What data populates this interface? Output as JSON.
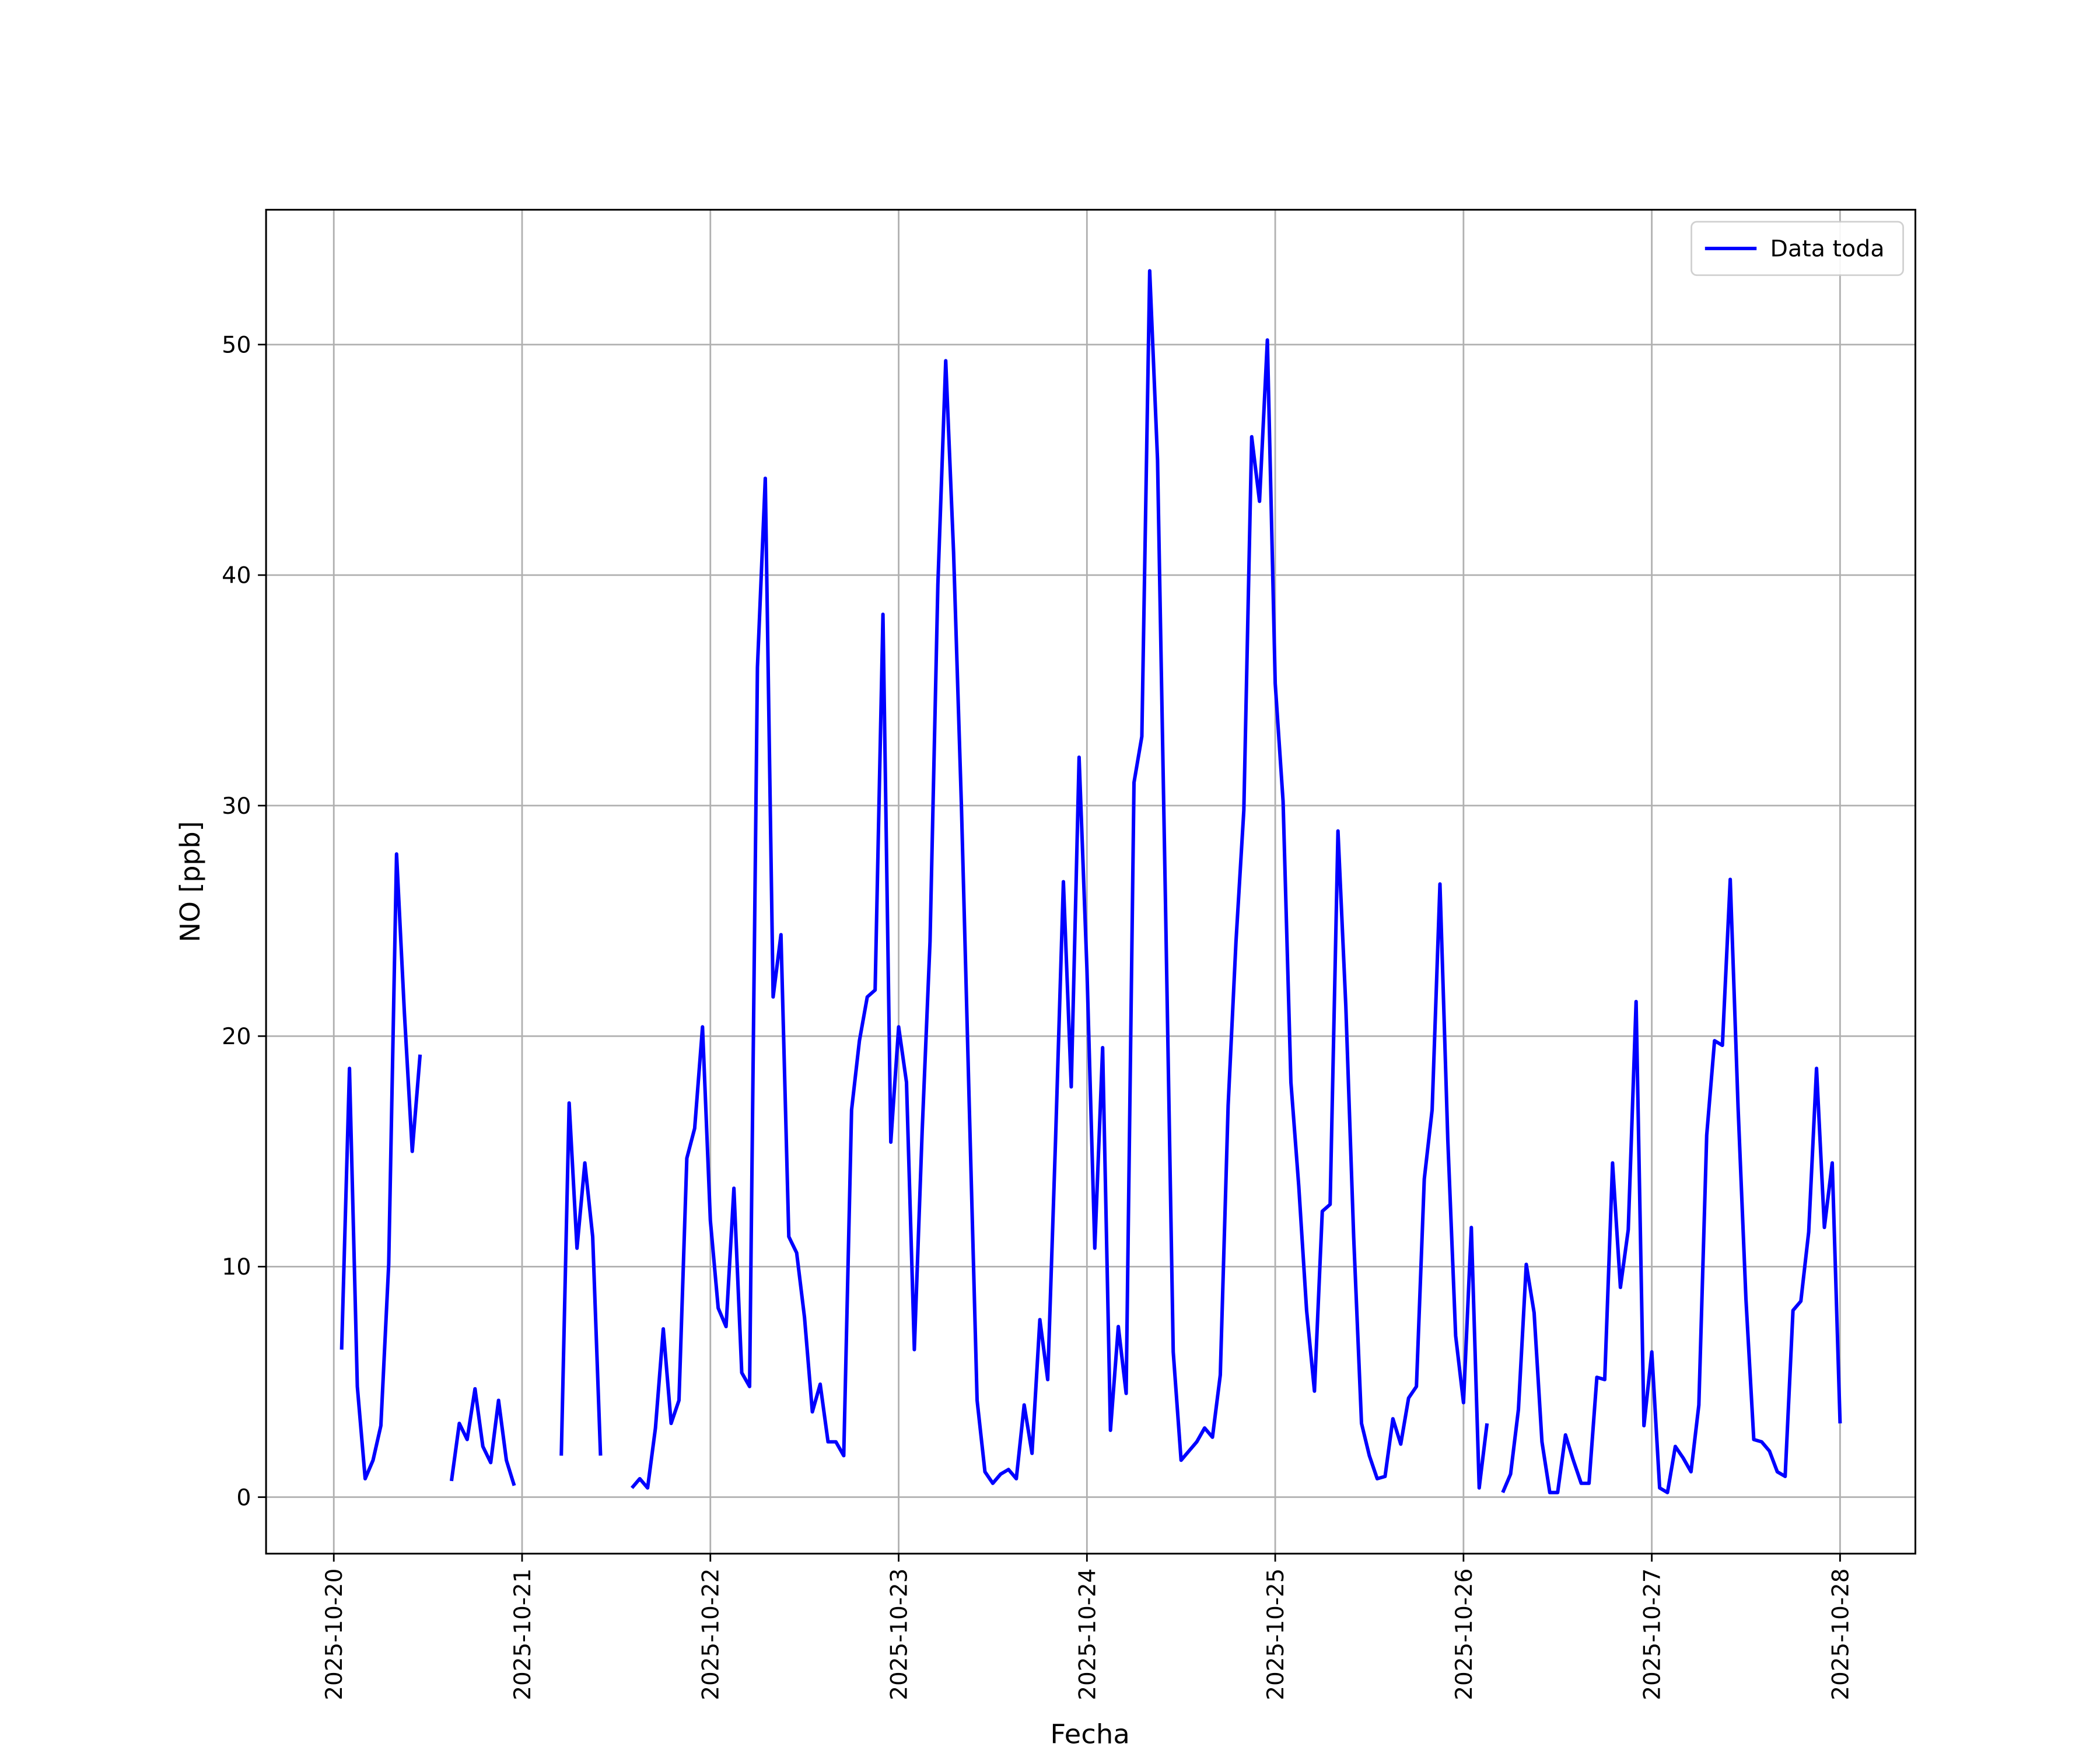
{
  "chart_data": {
    "type": "line",
    "xlabel": "Fecha",
    "ylabel": "NO [ppb]",
    "x": [
      "2025-10-20 01:00",
      "2025-10-20 02:00",
      "2025-10-20 03:00",
      "2025-10-20 04:00",
      "2025-10-20 05:00",
      "2025-10-20 06:00",
      "2025-10-20 07:00",
      "2025-10-20 08:00",
      "2025-10-20 09:00",
      "2025-10-20 10:00",
      "2025-10-20 11:00",
      "2025-10-20 12:00",
      "2025-10-20 13:00",
      "2025-10-20 14:00",
      "2025-10-20 15:00",
      "2025-10-20 16:00",
      "2025-10-20 17:00",
      "2025-10-20 18:00",
      "2025-10-20 19:00",
      "2025-10-20 20:00",
      "2025-10-20 21:00",
      "2025-10-20 22:00",
      "2025-10-20 23:00",
      "2025-10-21 00:00",
      "2025-10-21 01:00",
      "2025-10-21 02:00",
      "2025-10-21 03:00",
      "2025-10-21 04:00",
      "2025-10-21 05:00",
      "2025-10-21 06:00",
      "2025-10-21 07:00",
      "2025-10-21 08:00",
      "2025-10-21 09:00",
      "2025-10-21 10:00",
      "2025-10-21 11:00",
      "2025-10-21 12:00",
      "2025-10-21 13:00",
      "2025-10-21 14:00",
      "2025-10-21 15:00",
      "2025-10-21 16:00",
      "2025-10-21 17:00",
      "2025-10-21 18:00",
      "2025-10-21 19:00",
      "2025-10-21 20:00",
      "2025-10-21 21:00",
      "2025-10-21 22:00",
      "2025-10-21 23:00",
      "2025-10-22 00:00",
      "2025-10-22 01:00",
      "2025-10-22 02:00",
      "2025-10-22 03:00",
      "2025-10-22 04:00",
      "2025-10-22 05:00",
      "2025-10-22 06:00",
      "2025-10-22 07:00",
      "2025-10-22 08:00",
      "2025-10-22 09:00",
      "2025-10-22 10:00",
      "2025-10-22 11:00",
      "2025-10-22 12:00",
      "2025-10-22 13:00",
      "2025-10-22 14:00",
      "2025-10-22 15:00",
      "2025-10-22 16:00",
      "2025-10-22 17:00",
      "2025-10-22 18:00",
      "2025-10-22 19:00",
      "2025-10-22 20:00",
      "2025-10-22 21:00",
      "2025-10-22 22:00",
      "2025-10-22 23:00",
      "2025-10-23 00:00",
      "2025-10-23 01:00",
      "2025-10-23 02:00",
      "2025-10-23 03:00",
      "2025-10-23 04:00",
      "2025-10-23 05:00",
      "2025-10-23 06:00",
      "2025-10-23 07:00",
      "2025-10-23 08:00",
      "2025-10-23 09:00",
      "2025-10-23 10:00",
      "2025-10-23 11:00",
      "2025-10-23 12:00",
      "2025-10-23 13:00",
      "2025-10-23 14:00",
      "2025-10-23 15:00",
      "2025-10-23 16:00",
      "2025-10-23 17:00",
      "2025-10-23 18:00",
      "2025-10-23 19:00",
      "2025-10-23 20:00",
      "2025-10-23 21:00",
      "2025-10-23 22:00",
      "2025-10-23 23:00",
      "2025-10-24 00:00",
      "2025-10-24 01:00",
      "2025-10-24 02:00",
      "2025-10-24 03:00",
      "2025-10-24 04:00",
      "2025-10-24 05:00",
      "2025-10-24 06:00",
      "2025-10-24 07:00",
      "2025-10-24 08:00",
      "2025-10-24 09:00",
      "2025-10-24 10:00",
      "2025-10-24 11:00",
      "2025-10-24 12:00",
      "2025-10-24 13:00",
      "2025-10-24 14:00",
      "2025-10-24 15:00",
      "2025-10-24 16:00",
      "2025-10-24 17:00",
      "2025-10-24 18:00",
      "2025-10-24 19:00",
      "2025-10-24 20:00",
      "2025-10-24 21:00",
      "2025-10-24 22:00",
      "2025-10-24 23:00",
      "2025-10-25 00:00",
      "2025-10-25 01:00",
      "2025-10-25 02:00",
      "2025-10-25 03:00",
      "2025-10-25 04:00",
      "2025-10-25 05:00",
      "2025-10-25 06:00",
      "2025-10-25 07:00",
      "2025-10-25 08:00",
      "2025-10-25 09:00",
      "2025-10-25 10:00",
      "2025-10-25 11:00",
      "2025-10-25 12:00",
      "2025-10-25 13:00",
      "2025-10-25 14:00",
      "2025-10-25 15:00",
      "2025-10-25 16:00",
      "2025-10-25 17:00",
      "2025-10-25 18:00",
      "2025-10-25 19:00",
      "2025-10-25 20:00",
      "2025-10-25 21:00",
      "2025-10-25 22:00",
      "2025-10-25 23:00",
      "2025-10-26 00:00",
      "2025-10-26 01:00",
      "2025-10-26 02:00",
      "2025-10-26 03:00",
      "2025-10-26 04:00",
      "2025-10-26 05:00",
      "2025-10-26 06:00",
      "2025-10-26 07:00",
      "2025-10-26 08:00",
      "2025-10-26 09:00",
      "2025-10-26 10:00",
      "2025-10-26 11:00",
      "2025-10-26 12:00",
      "2025-10-26 13:00",
      "2025-10-26 14:00",
      "2025-10-26 15:00",
      "2025-10-26 16:00",
      "2025-10-26 17:00",
      "2025-10-26 18:00",
      "2025-10-26 19:00",
      "2025-10-26 20:00",
      "2025-10-26 21:00",
      "2025-10-26 22:00",
      "2025-10-26 23:00",
      "2025-10-27 00:00",
      "2025-10-27 01:00",
      "2025-10-27 02:00",
      "2025-10-27 03:00",
      "2025-10-27 04:00",
      "2025-10-27 05:00",
      "2025-10-27 06:00",
      "2025-10-27 07:00",
      "2025-10-27 08:00",
      "2025-10-27 09:00",
      "2025-10-27 10:00",
      "2025-10-27 11:00",
      "2025-10-27 12:00",
      "2025-10-27 13:00",
      "2025-10-27 14:00",
      "2025-10-27 15:00",
      "2025-10-27 16:00",
      "2025-10-27 17:00",
      "2025-10-27 18:00",
      "2025-10-27 19:00",
      "2025-10-27 20:00",
      "2025-10-27 21:00",
      "2025-10-27 22:00",
      "2025-10-27 23:00",
      "2025-10-28 00:00"
    ],
    "series": [
      {
        "name": "Data toda",
        "color": "#0000ff",
        "values": [
          6.4,
          18.6,
          4.8,
          0.8,
          1.6,
          3.1,
          10.1,
          27.9,
          21,
          15,
          19.2,
          null,
          null,
          null,
          0.7,
          3.2,
          2.5,
          4.7,
          2.2,
          1.5,
          4.2,
          1.6,
          0.5,
          null,
          null,
          null,
          null,
          null,
          1.8,
          17.1,
          10.8,
          14.5,
          11.3,
          1.8,
          null,
          null,
          null,
          0.4,
          0.8,
          0.4,
          3,
          7.3,
          3.2,
          4.2,
          14.7,
          16,
          20.4,
          12,
          8.2,
          7.4,
          13.4,
          5.4,
          4.8,
          36,
          44.2,
          21.7,
          24.4,
          11.3,
          10.6,
          7.8,
          3.7,
          4.9,
          2.4,
          2.4,
          1.8,
          16.8,
          19.8,
          21.7,
          22,
          38.3,
          15.4,
          20.4,
          18,
          6.4,
          15.9,
          24.1,
          39.6,
          49.3,
          41,
          30,
          17,
          4.2,
          1.1,
          0.6,
          1,
          1.2,
          0.8,
          4,
          1.9,
          7.7,
          5.1,
          15.5,
          26.7,
          17.8,
          32.1,
          22.9,
          10.8,
          19.5,
          2.9,
          7.4,
          4.5,
          31,
          33,
          53.2,
          45,
          26,
          6.3,
          1.6,
          2,
          2.4,
          3,
          2.6,
          5.3,
          17,
          24.1,
          29.8,
          46,
          43.2,
          50.2,
          35.3,
          30.2,
          18,
          13.5,
          8.1,
          4.6,
          12.4,
          12.7,
          28.9,
          21.3,
          11.3,
          3.2,
          1.8,
          0.8,
          0.9,
          3.4,
          2.3,
          4.3,
          4.8,
          13.8,
          16.8,
          26.6,
          15.5,
          7,
          4.1,
          11.7,
          0.4,
          3.2,
          null,
          0.2,
          1,
          3.8,
          10.1,
          8,
          2.4,
          0.2,
          0.2,
          2.7,
          1.6,
          0.6,
          0.6,
          5.2,
          5.1,
          14.5,
          9.1,
          11.6,
          21.5,
          3.1,
          6.3,
          0.4,
          0.2,
          2.2,
          1.7,
          1.1,
          4,
          15.7,
          19.8,
          19.6,
          26.8,
          16.9,
          8.6,
          2.5,
          2.4,
          2,
          1.1,
          0.9,
          8.1,
          8.5,
          11.5,
          18.6,
          11.7,
          14.5,
          3.2
        ]
      }
    ],
    "xlim": [
      "2025-10-19 15:22",
      "2025-10-28 09:36"
    ],
    "xticks": [
      "2025-10-20",
      "2025-10-21",
      "2025-10-22",
      "2025-10-23",
      "2025-10-24",
      "2025-10-25",
      "2025-10-26",
      "2025-10-27",
      "2025-10-28"
    ],
    "ylim": [
      -2.45,
      55.85
    ],
    "yticks": [
      0,
      10,
      20,
      30,
      40,
      50
    ],
    "grid": true,
    "legend": "upper right"
  }
}
